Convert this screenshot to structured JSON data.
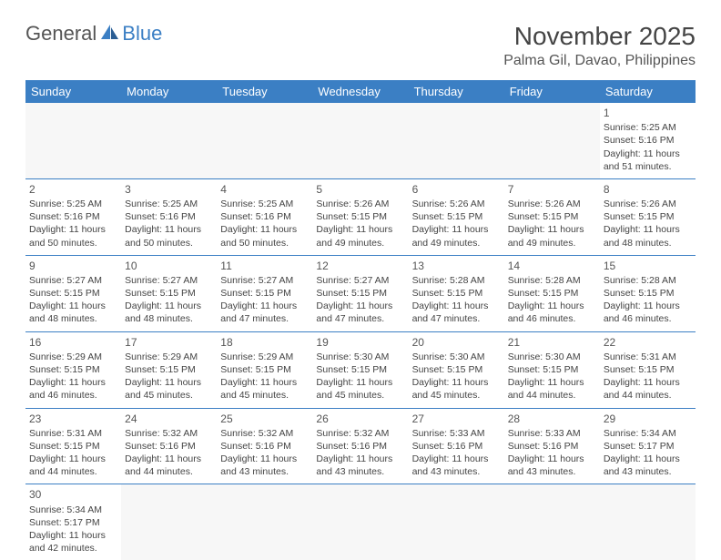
{
  "logo": {
    "textA": "General",
    "textB": "Blue"
  },
  "title": "November 2025",
  "location": "Palma Gil, Davao, Philippines",
  "colors": {
    "headerBand": "#3b7fc4",
    "headerText": "#ffffff",
    "cellBorder": "#3b7fc4",
    "emptyBg": "#f7f7f7",
    "bodyText": "#444444"
  },
  "dayHeaders": [
    "Sunday",
    "Monday",
    "Tuesday",
    "Wednesday",
    "Thursday",
    "Friday",
    "Saturday"
  ],
  "startDayIndex": 6,
  "daysInMonth": 30,
  "days": {
    "1": {
      "sunrise": "5:25 AM",
      "sunset": "5:16 PM",
      "daylight": "11 hours and 51 minutes."
    },
    "2": {
      "sunrise": "5:25 AM",
      "sunset": "5:16 PM",
      "daylight": "11 hours and 50 minutes."
    },
    "3": {
      "sunrise": "5:25 AM",
      "sunset": "5:16 PM",
      "daylight": "11 hours and 50 minutes."
    },
    "4": {
      "sunrise": "5:25 AM",
      "sunset": "5:16 PM",
      "daylight": "11 hours and 50 minutes."
    },
    "5": {
      "sunrise": "5:26 AM",
      "sunset": "5:15 PM",
      "daylight": "11 hours and 49 minutes."
    },
    "6": {
      "sunrise": "5:26 AM",
      "sunset": "5:15 PM",
      "daylight": "11 hours and 49 minutes."
    },
    "7": {
      "sunrise": "5:26 AM",
      "sunset": "5:15 PM",
      "daylight": "11 hours and 49 minutes."
    },
    "8": {
      "sunrise": "5:26 AM",
      "sunset": "5:15 PM",
      "daylight": "11 hours and 48 minutes."
    },
    "9": {
      "sunrise": "5:27 AM",
      "sunset": "5:15 PM",
      "daylight": "11 hours and 48 minutes."
    },
    "10": {
      "sunrise": "5:27 AM",
      "sunset": "5:15 PM",
      "daylight": "11 hours and 48 minutes."
    },
    "11": {
      "sunrise": "5:27 AM",
      "sunset": "5:15 PM",
      "daylight": "11 hours and 47 minutes."
    },
    "12": {
      "sunrise": "5:27 AM",
      "sunset": "5:15 PM",
      "daylight": "11 hours and 47 minutes."
    },
    "13": {
      "sunrise": "5:28 AM",
      "sunset": "5:15 PM",
      "daylight": "11 hours and 47 minutes."
    },
    "14": {
      "sunrise": "5:28 AM",
      "sunset": "5:15 PM",
      "daylight": "11 hours and 46 minutes."
    },
    "15": {
      "sunrise": "5:28 AM",
      "sunset": "5:15 PM",
      "daylight": "11 hours and 46 minutes."
    },
    "16": {
      "sunrise": "5:29 AM",
      "sunset": "5:15 PM",
      "daylight": "11 hours and 46 minutes."
    },
    "17": {
      "sunrise": "5:29 AM",
      "sunset": "5:15 PM",
      "daylight": "11 hours and 45 minutes."
    },
    "18": {
      "sunrise": "5:29 AM",
      "sunset": "5:15 PM",
      "daylight": "11 hours and 45 minutes."
    },
    "19": {
      "sunrise": "5:30 AM",
      "sunset": "5:15 PM",
      "daylight": "11 hours and 45 minutes."
    },
    "20": {
      "sunrise": "5:30 AM",
      "sunset": "5:15 PM",
      "daylight": "11 hours and 45 minutes."
    },
    "21": {
      "sunrise": "5:30 AM",
      "sunset": "5:15 PM",
      "daylight": "11 hours and 44 minutes."
    },
    "22": {
      "sunrise": "5:31 AM",
      "sunset": "5:15 PM",
      "daylight": "11 hours and 44 minutes."
    },
    "23": {
      "sunrise": "5:31 AM",
      "sunset": "5:15 PM",
      "daylight": "11 hours and 44 minutes."
    },
    "24": {
      "sunrise": "5:32 AM",
      "sunset": "5:16 PM",
      "daylight": "11 hours and 44 minutes."
    },
    "25": {
      "sunrise": "5:32 AM",
      "sunset": "5:16 PM",
      "daylight": "11 hours and 43 minutes."
    },
    "26": {
      "sunrise": "5:32 AM",
      "sunset": "5:16 PM",
      "daylight": "11 hours and 43 minutes."
    },
    "27": {
      "sunrise": "5:33 AM",
      "sunset": "5:16 PM",
      "daylight": "11 hours and 43 minutes."
    },
    "28": {
      "sunrise": "5:33 AM",
      "sunset": "5:16 PM",
      "daylight": "11 hours and 43 minutes."
    },
    "29": {
      "sunrise": "5:34 AM",
      "sunset": "5:17 PM",
      "daylight": "11 hours and 43 minutes."
    },
    "30": {
      "sunrise": "5:34 AM",
      "sunset": "5:17 PM",
      "daylight": "11 hours and 42 minutes."
    }
  },
  "labels": {
    "sunrise": "Sunrise:",
    "sunset": "Sunset:",
    "daylight": "Daylight:"
  }
}
